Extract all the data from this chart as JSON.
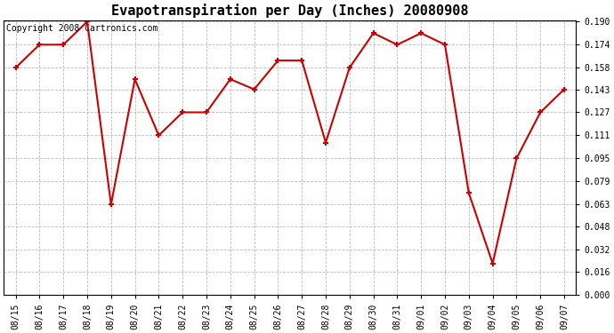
{
  "title": "Evapotranspiration per Day (Inches) 20080908",
  "copyright": "Copyright 2008 Cartronics.com",
  "x_labels": [
    "08/15",
    "08/16",
    "08/17",
    "08/18",
    "08/19",
    "08/20",
    "08/21",
    "08/22",
    "08/23",
    "08/24",
    "08/25",
    "08/26",
    "08/27",
    "08/28",
    "08/29",
    "08/30",
    "08/31",
    "09/01",
    "09/02",
    "09/03",
    "09/04",
    "09/05",
    "09/06",
    "09/07"
  ],
  "y_values": [
    0.158,
    0.174,
    0.174,
    0.19,
    0.063,
    0.15,
    0.111,
    0.127,
    0.127,
    0.15,
    0.143,
    0.163,
    0.163,
    0.106,
    0.158,
    0.182,
    0.174,
    0.182,
    0.174,
    0.071,
    0.022,
    0.095,
    0.127,
    0.143
  ],
  "y_ticks": [
    0.0,
    0.016,
    0.032,
    0.048,
    0.063,
    0.079,
    0.095,
    0.111,
    0.127,
    0.143,
    0.158,
    0.174,
    0.19
  ],
  "ylim": [
    0.0,
    0.19
  ],
  "line_color": "#cc0000",
  "marker": "+",
  "marker_size": 5,
  "marker_edge_width": 1.5,
  "line_width": 1.5,
  "grid_color": "#bbbbbb",
  "grid_style": "--",
  "bg_color": "#ffffff",
  "title_fontsize": 11,
  "tick_fontsize": 7,
  "copyright_fontsize": 7
}
